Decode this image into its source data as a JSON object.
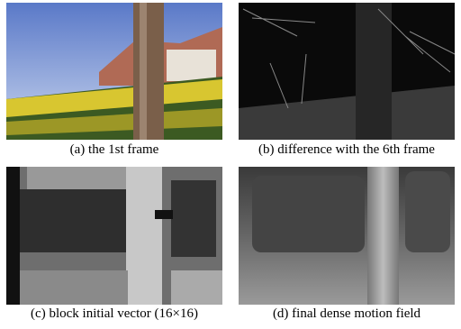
{
  "figure": {
    "panels": [
      {
        "caption": "(a) the 1st frame"
      },
      {
        "caption": "(b) difference with the 6th frame"
      },
      {
        "caption": "(c) block initial vector (16×16)"
      },
      {
        "caption": "(d) final dense motion field"
      }
    ]
  }
}
